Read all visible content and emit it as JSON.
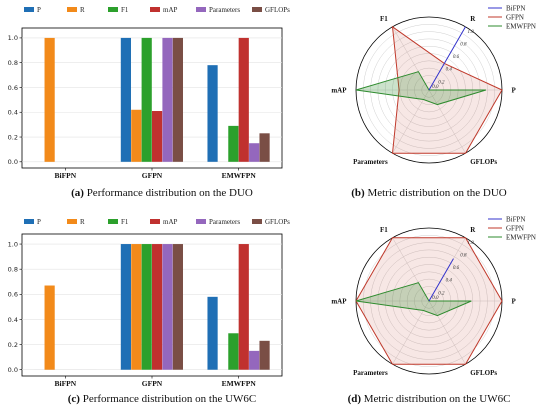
{
  "chart_data": [
    {
      "type": "bar",
      "panel": "a",
      "caption_tag": "(a)",
      "caption_text": "Performance distribution on the DUO",
      "categories": [
        "BiFPN",
        "GFPN",
        "EMWFPN"
      ],
      "ylim": [
        -0.05,
        1.08
      ],
      "yticks": [
        "0.0",
        "0.2",
        "0.4",
        "0.6",
        "0.8",
        "1.0"
      ],
      "grid": true,
      "legend_position": "top",
      "series": [
        {
          "name": "P",
          "color": "#1f6fb5",
          "values": [
            0.0,
            1.0,
            0.78
          ]
        },
        {
          "name": "R",
          "color": "#f28a1a",
          "values": [
            1.0,
            0.42,
            0.0
          ]
        },
        {
          "name": "F1",
          "color": "#2ca02c",
          "values": [
            0.0,
            1.0,
            0.29
          ]
        },
        {
          "name": "mAP",
          "color": "#c0312f",
          "values": [
            0.0,
            0.41,
            1.0
          ]
        },
        {
          "name": "Parameters",
          "color": "#9467bd",
          "values": [
            0.0,
            1.0,
            0.15
          ]
        },
        {
          "name": "GFLOPs",
          "color": "#7a4e45",
          "values": [
            0.0,
            1.0,
            0.23
          ]
        }
      ]
    },
    {
      "type": "radar",
      "panel": "b",
      "caption_tag": "(b)",
      "caption_text": "Metric distribution on the DUO",
      "axes": [
        "R",
        "P",
        "GFLOPs",
        "Parameters",
        "mAP",
        "F1"
      ],
      "rticks": [
        "0.0",
        "0.2",
        "0.4",
        "0.6",
        "0.8",
        "1.0"
      ],
      "legend_position": "top-right",
      "series": [
        {
          "name": "BiFPN",
          "color": "#3333cc",
          "fill": false,
          "values": [
            1.0,
            0.0,
            0.0,
            0.0,
            0.0,
            0.0
          ]
        },
        {
          "name": "GFPN",
          "color": "#c0392b",
          "fill": true,
          "values": [
            0.42,
            1.0,
            1.0,
            1.0,
            0.41,
            1.0
          ]
        },
        {
          "name": "EMWFPN",
          "color": "#2e8b2e",
          "fill": true,
          "values": [
            0.0,
            0.78,
            0.23,
            0.15,
            1.0,
            0.29
          ]
        }
      ]
    },
    {
      "type": "bar",
      "panel": "c",
      "caption_tag": "(c)",
      "caption_text": "Performance distribution on the UW6C",
      "categories": [
        "BiFPN",
        "GFPN",
        "EMWFPN"
      ],
      "ylim": [
        -0.05,
        1.08
      ],
      "yticks": [
        "0.0",
        "0.2",
        "0.4",
        "0.6",
        "0.8",
        "1.0"
      ],
      "grid": true,
      "legend_position": "top",
      "series": [
        {
          "name": "P",
          "color": "#1f6fb5",
          "values": [
            0.0,
            1.0,
            0.58
          ]
        },
        {
          "name": "R",
          "color": "#f28a1a",
          "values": [
            0.67,
            1.0,
            0.0
          ]
        },
        {
          "name": "F1",
          "color": "#2ca02c",
          "values": [
            0.0,
            1.0,
            0.29
          ]
        },
        {
          "name": "mAP",
          "color": "#c0312f",
          "values": [
            0.0,
            1.0,
            1.0
          ]
        },
        {
          "name": "Parameters",
          "color": "#9467bd",
          "values": [
            0.0,
            1.0,
            0.15
          ]
        },
        {
          "name": "GFLOPs",
          "color": "#7a4e45",
          "values": [
            0.0,
            1.0,
            0.23
          ]
        }
      ]
    },
    {
      "type": "radar",
      "panel": "d",
      "caption_tag": "(d)",
      "caption_text": "Metric distribution on the UW6C",
      "axes": [
        "R",
        "P",
        "GFLOPs",
        "Parameters",
        "mAP",
        "F1"
      ],
      "rticks": [
        "0.0",
        "0.2",
        "0.4",
        "0.6",
        "0.8",
        "1.0"
      ],
      "legend_position": "top-right",
      "series": [
        {
          "name": "BiFPN",
          "color": "#3333cc",
          "fill": false,
          "values": [
            0.67,
            0.0,
            0.0,
            0.0,
            0.0,
            0.0
          ]
        },
        {
          "name": "GFPN",
          "color": "#c0392b",
          "fill": true,
          "values": [
            1.0,
            1.0,
            1.0,
            1.0,
            1.0,
            1.0
          ]
        },
        {
          "name": "EMWFPN",
          "color": "#2e8b2e",
          "fill": true,
          "values": [
            0.0,
            0.58,
            0.23,
            0.15,
            1.0,
            0.29
          ]
        }
      ]
    }
  ]
}
